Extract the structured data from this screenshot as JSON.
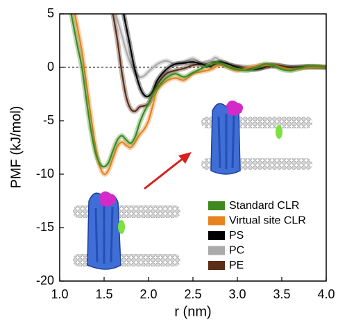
{
  "chart_data": {
    "type": "line",
    "xlabel": "r (nm)",
    "ylabel": "PMF (kJ/mol)",
    "xlim": [
      1.0,
      4.0
    ],
    "xticks": [
      {
        "value": 1,
        "label": "1.0"
      },
      1.5,
      {
        "value": 2,
        "label": "2.0"
      },
      2.5,
      {
        "value": 3,
        "label": "3.0"
      },
      3.5,
      {
        "value": 4,
        "label": "4.0"
      }
    ],
    "ylim": [
      -20,
      5
    ],
    "yticks": [
      5,
      0,
      -5,
      -10,
      -15,
      -20
    ],
    "zero_line": true,
    "legend": "lower right",
    "series": [
      {
        "name": "Standard CLR",
        "color": "#3f8a1e",
        "x": [
          1.13,
          1.2,
          1.25,
          1.3,
          1.35,
          1.4,
          1.45,
          1.5,
          1.55,
          1.6,
          1.65,
          1.7,
          1.75,
          1.8,
          1.85,
          1.9,
          1.95,
          2.0,
          2.05,
          2.1,
          2.2,
          2.3,
          2.4,
          2.5,
          2.6,
          2.7,
          2.8,
          2.9,
          3.0,
          3.1,
          3.2,
          3.3,
          3.4,
          3.5,
          3.6,
          3.7,
          3.8,
          3.9,
          4.0
        ],
        "values": [
          5,
          2,
          0,
          -3,
          -5.8,
          -7.9,
          -9,
          -9.3,
          -8.9,
          -7.8,
          -6.8,
          -6.4,
          -6.8,
          -7.1,
          -6.5,
          -5.2,
          -4.2,
          -3.4,
          -2.5,
          -1.9,
          -1.0,
          -0.6,
          -0.9,
          -0.5,
          -0.1,
          0.3,
          0.4,
          0,
          -0.2,
          -0.3,
          -0.1,
          0.3,
          0.2,
          -0.2,
          -0.3,
          -0.1,
          0.1,
          0.1,
          0
        ]
      },
      {
        "name": "Virtual site CLR",
        "color": "#e8821e",
        "x": [
          1.17,
          1.25,
          1.3,
          1.35,
          1.4,
          1.45,
          1.5,
          1.55,
          1.6,
          1.65,
          1.7,
          1.75,
          1.8,
          1.85,
          1.9,
          1.95,
          2.0,
          2.05,
          2.1,
          2.2,
          2.3,
          2.4,
          2.5,
          2.6,
          2.7,
          2.8,
          2.9,
          3.0,
          3.2,
          3.4,
          3.6,
          3.8,
          4.0
        ],
        "values": [
          5,
          1.5,
          -1.5,
          -4.5,
          -7.3,
          -9.2,
          -10,
          -9.6,
          -8.5,
          -7.4,
          -7.0,
          -7.3,
          -7.5,
          -7.0,
          -6.3,
          -5.8,
          -5.0,
          -3.5,
          -2.1,
          -1.3,
          -1.0,
          -1.2,
          -0.6,
          -0.4,
          -0.2,
          0.2,
          0,
          -0.3,
          0.1,
          0.2,
          -0.2,
          0,
          0
        ]
      },
      {
        "name": "PS",
        "color": "#000000",
        "x": [
          1.72,
          1.78,
          1.84,
          1.9,
          1.95,
          2.0,
          2.05,
          2.1,
          2.2,
          2.3,
          2.4,
          2.5,
          2.6,
          2.7,
          2.8,
          2.9,
          3.0,
          3.2,
          3.4,
          3.6,
          3.8,
          4.0
        ],
        "values": [
          5,
          2.5,
          0,
          -1.8,
          -2.6,
          -2.7,
          -2.2,
          -1.2,
          -0.2,
          0.3,
          0.4,
          0.5,
          0.3,
          0.1,
          0.5,
          0.3,
          0,
          -0.2,
          0.2,
          0,
          0.1,
          0
        ]
      },
      {
        "name": "PC",
        "color": "#aaaaaa",
        "x": [
          1.63,
          1.7,
          1.75,
          1.8,
          1.85,
          1.9,
          1.95,
          2.0,
          2.1,
          2.2,
          2.3,
          2.4,
          2.5,
          2.6,
          2.7,
          2.75,
          2.8,
          2.9,
          3.0,
          3.2,
          3.4,
          3.6,
          3.8,
          4.0
        ],
        "values": [
          5,
          3,
          1.5,
          0.3,
          -0.5,
          -0.9,
          -0.8,
          -0.4,
          0.3,
          0.6,
          0.3,
          0.5,
          0.8,
          0.4,
          0.6,
          0.9,
          0.7,
          0.2,
          0,
          0.1,
          0.3,
          0,
          0,
          0
        ]
      },
      {
        "name": "PE",
        "color": "#5a2e17",
        "x": [
          1.6,
          1.65,
          1.7,
          1.75,
          1.8,
          1.85,
          1.9,
          1.95,
          2.0,
          2.05,
          2.1,
          2.2,
          2.3,
          2.4,
          2.5,
          2.6,
          2.7,
          2.8,
          2.9,
          3.0,
          3.2,
          3.4,
          3.6,
          3.8,
          4.0
        ],
        "values": [
          5,
          2.5,
          -0.5,
          -2.8,
          -3.9,
          -4.1,
          -3.7,
          -3.6,
          -3.4,
          -2.5,
          -1.6,
          -0.6,
          -0.3,
          -0.1,
          0.2,
          0.3,
          0.5,
          0.4,
          0.2,
          0.1,
          -0.1,
          0.1,
          0,
          0,
          0
        ]
      }
    ]
  }
}
